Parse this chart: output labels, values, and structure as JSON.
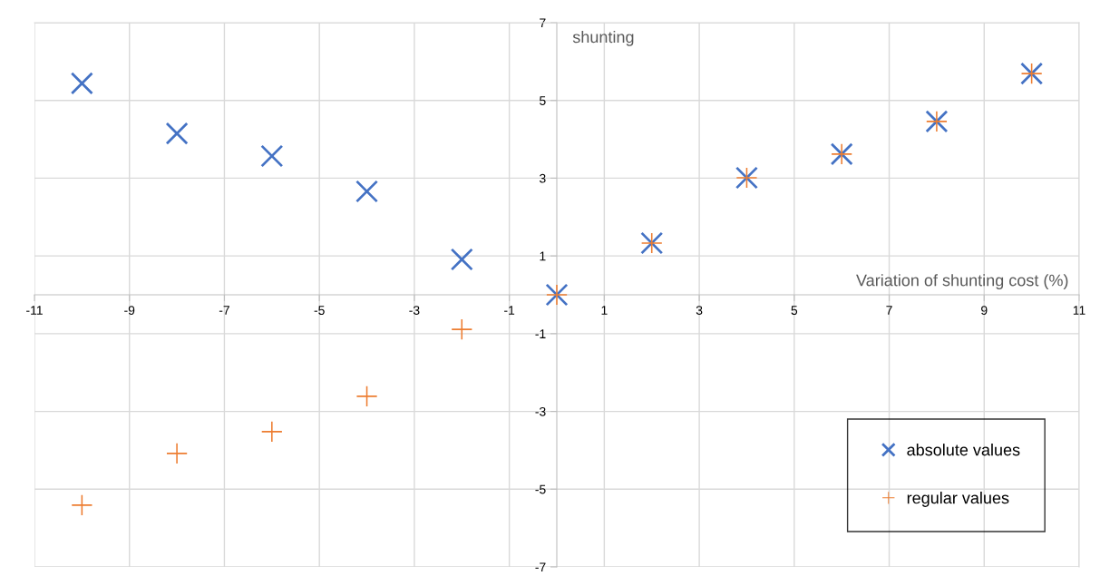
{
  "chart_data": {
    "type": "scatter",
    "xlabel": "Variation of shunting cost (%)",
    "ylabel": "shunting",
    "x": [
      -10,
      -8,
      -6,
      -4,
      -2,
      0,
      2,
      4,
      6,
      8,
      10
    ],
    "series": [
      {
        "name": "absolute values",
        "color": "#4472c4",
        "marker": "cross",
        "values": [
          5.44,
          4.15,
          3.57,
          2.66,
          0.91,
          0,
          1.33,
          3.01,
          3.62,
          4.46,
          5.69
        ]
      },
      {
        "name": "regular values",
        "color": "#ed7d31",
        "marker": "plus",
        "values": [
          -5.41,
          -4.08,
          -3.52,
          -2.61,
          -0.89,
          0,
          1.33,
          3.01,
          3.62,
          4.46,
          5.69
        ]
      }
    ],
    "xlim": [
      -11,
      11
    ],
    "xticks": [
      -11,
      -9,
      -7,
      -5,
      -3,
      -1,
      1,
      3,
      5,
      7,
      9,
      11
    ],
    "ylim": [
      -7,
      7
    ],
    "yticks": [
      -7,
      -5,
      -3,
      -1,
      1,
      3,
      5,
      7
    ],
    "grid": true,
    "legend": "bottom right"
  }
}
